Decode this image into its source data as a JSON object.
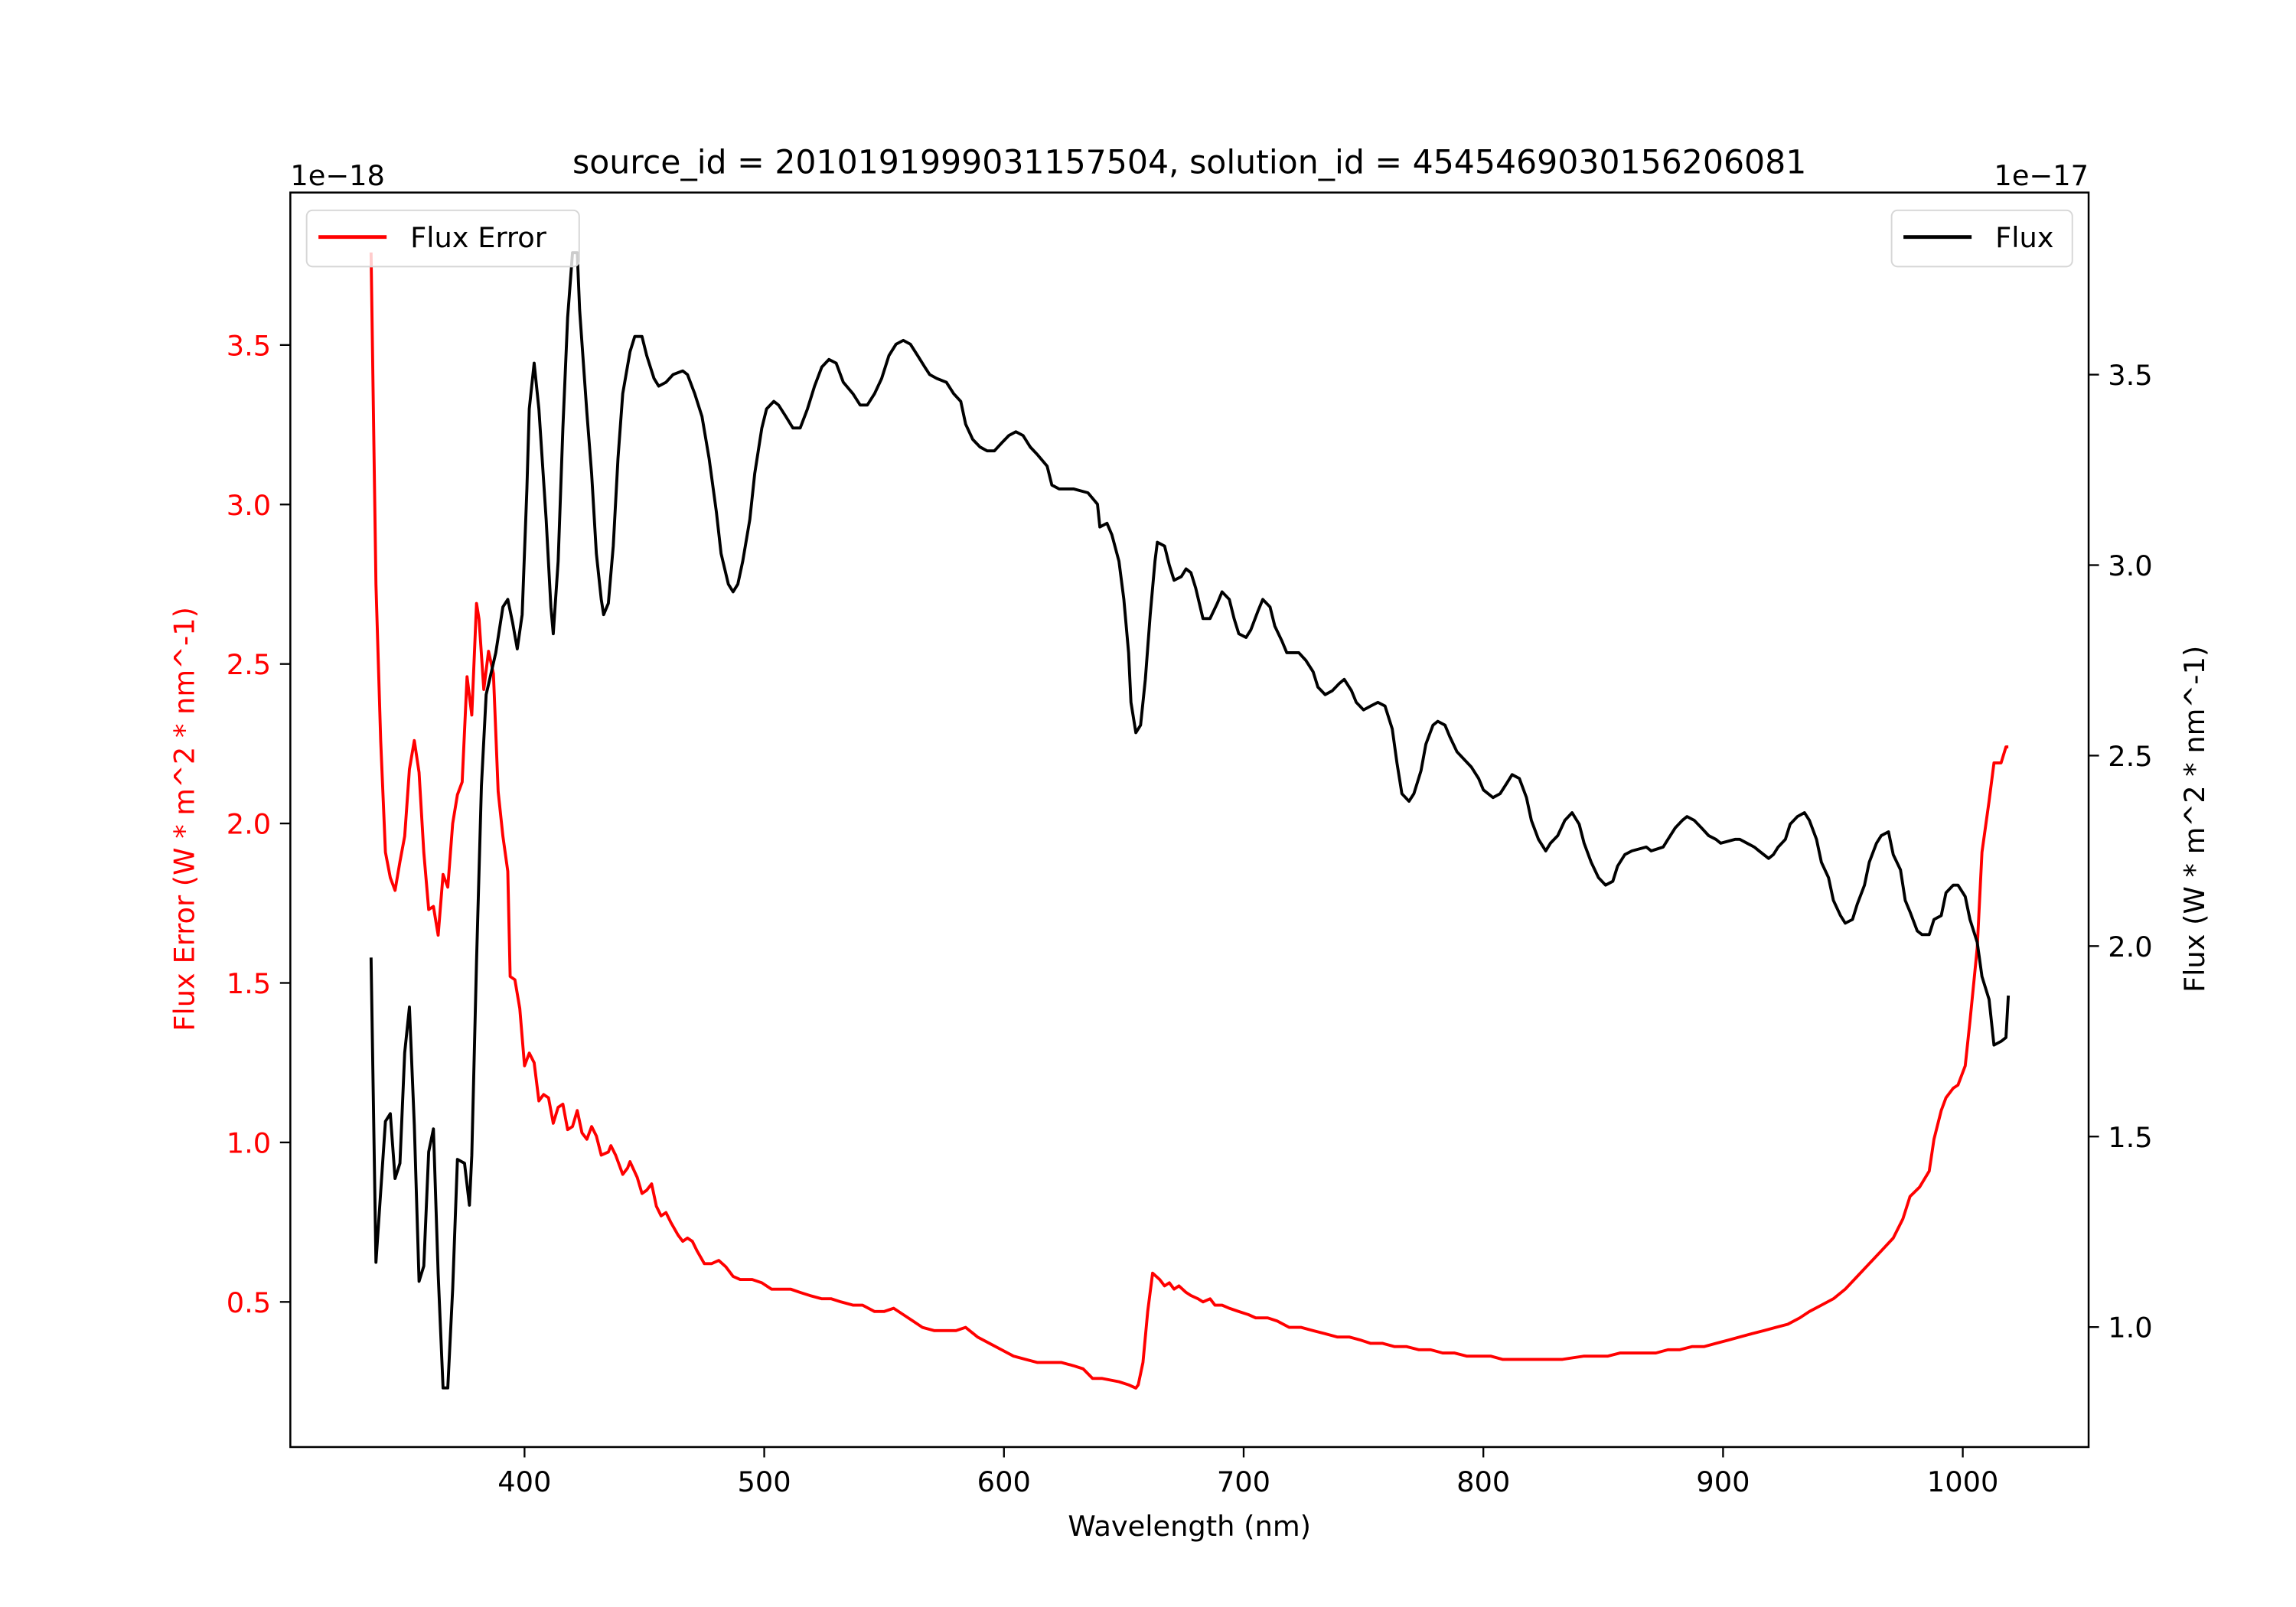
{
  "chart_data": {
    "type": "line",
    "title": "source_id = 2010191999031157504, solution_id = 4545469030156206081",
    "xlabel": "Wavelength (nm)",
    "ylabel_left": "Flux Error (W * m^2 * nm^-1)",
    "ylabel_right": "Flux (W * m^2 * nm^-1)",
    "left_offset_text": "1e−18",
    "right_offset_text": "1e−17",
    "xlim": [
      302.3,
      1052.5
    ],
    "ylim_left": [
      0.045,
      3.978
    ],
    "ylim_right": [
      0.685,
      3.978
    ],
    "x_ticks": [
      "400",
      "500",
      "600",
      "700",
      "800",
      "900",
      "1000"
    ],
    "y_ticks_left": [
      "0.5",
      "1.0",
      "1.5",
      "2.0",
      "2.5",
      "3.0",
      "3.5"
    ],
    "y_ticks_right": [
      "1.0",
      "1.5",
      "2.0",
      "2.5",
      "3.0",
      "3.5"
    ],
    "grid": false,
    "legend_left": {
      "label": "Flux Error",
      "placement": "upper-left"
    },
    "legend_right": {
      "label": "Flux",
      "placement": "upper-right"
    },
    "colors": {
      "flux_error": "#ff0000",
      "flux": "#000000",
      "left_axis_text": "#ff0000"
    },
    "series": [
      {
        "name": "Flux Error",
        "axis": "left",
        "x": [
          336,
          338,
          340,
          342,
          344,
          346,
          348,
          350,
          352,
          354,
          356,
          358,
          360,
          362,
          364,
          366,
          368,
          370,
          372,
          374,
          376,
          378,
          380,
          381,
          383,
          385,
          387,
          389,
          391,
          393,
          394,
          396,
          398,
          400,
          402,
          404,
          406,
          408,
          410,
          412,
          414,
          416,
          418,
          420,
          422,
          424,
          426,
          428,
          430,
          432,
          435,
          436,
          438,
          441,
          443,
          444,
          447,
          449,
          451,
          453,
          455,
          457,
          459,
          461,
          464,
          466,
          468,
          470,
          472,
          475,
          478,
          481,
          484,
          487,
          490,
          495,
          499,
          503,
          507,
          511,
          515,
          519,
          524,
          528,
          532,
          537,
          541,
          546,
          550,
          554,
          558,
          562,
          566,
          571,
          575,
          580,
          584,
          589,
          594,
          599,
          604,
          609,
          614,
          619,
          624,
          629,
          633,
          637,
          641,
          648,
          652,
          655,
          656,
          658,
          660,
          662,
          665,
          667,
          669,
          671,
          673,
          676,
          678,
          681,
          683,
          686,
          688,
          691,
          694,
          698,
          702,
          705,
          710,
          714,
          719,
          724,
          729,
          734,
          739,
          744,
          749,
          753,
          758,
          763,
          768,
          773,
          778,
          783,
          788,
          793,
          798,
          803,
          808,
          818,
          828,
          833,
          842,
          852,
          857,
          867,
          872,
          877,
          882,
          887,
          892,
          897,
          902,
          907,
          912,
          917,
          922,
          927,
          932,
          936,
          941,
          946,
          951,
          956,
          961,
          966,
          971,
          975,
          978,
          982,
          986,
          988,
          991,
          993,
          996,
          998,
          1001,
          1003,
          1006,
          1008,
          1011,
          1013,
          1016,
          1018,
          1019
        ],
        "y": [
          3.79,
          2.75,
          2.26,
          1.91,
          1.83,
          1.79,
          1.88,
          1.96,
          2.17,
          2.26,
          2.16,
          1.91,
          1.73,
          1.74,
          1.65,
          1.84,
          1.8,
          2.0,
          2.09,
          2.13,
          2.46,
          2.34,
          2.69,
          2.64,
          2.42,
          2.54,
          2.47,
          2.1,
          1.96,
          1.85,
          1.52,
          1.51,
          1.42,
          1.24,
          1.28,
          1.25,
          1.13,
          1.15,
          1.14,
          1.06,
          1.11,
          1.12,
          1.04,
          1.05,
          1.1,
          1.03,
          1.01,
          1.05,
          1.02,
          0.96,
          0.97,
          0.99,
          0.96,
          0.9,
          0.92,
          0.94,
          0.89,
          0.84,
          0.85,
          0.87,
          0.8,
          0.77,
          0.78,
          0.75,
          0.71,
          0.69,
          0.7,
          0.69,
          0.66,
          0.62,
          0.62,
          0.63,
          0.61,
          0.58,
          0.57,
          0.57,
          0.56,
          0.54,
          0.54,
          0.54,
          0.53,
          0.52,
          0.51,
          0.51,
          0.5,
          0.49,
          0.49,
          0.47,
          0.47,
          0.48,
          0.46,
          0.44,
          0.42,
          0.41,
          0.41,
          0.41,
          0.42,
          0.39,
          0.37,
          0.35,
          0.33,
          0.32,
          0.31,
          0.31,
          0.31,
          0.3,
          0.29,
          0.26,
          0.26,
          0.25,
          0.24,
          0.23,
          0.24,
          0.31,
          0.47,
          0.59,
          0.57,
          0.55,
          0.56,
          0.54,
          0.55,
          0.53,
          0.52,
          0.51,
          0.5,
          0.51,
          0.49,
          0.49,
          0.48,
          0.47,
          0.46,
          0.45,
          0.45,
          0.44,
          0.42,
          0.42,
          0.41,
          0.4,
          0.39,
          0.39,
          0.38,
          0.37,
          0.37,
          0.36,
          0.36,
          0.35,
          0.35,
          0.34,
          0.34,
          0.33,
          0.33,
          0.33,
          0.32,
          0.32,
          0.32,
          0.32,
          0.33,
          0.33,
          0.34,
          0.34,
          0.34,
          0.35,
          0.35,
          0.36,
          0.36,
          0.37,
          0.38,
          0.39,
          0.4,
          0.41,
          0.42,
          0.43,
          0.45,
          0.47,
          0.49,
          0.51,
          0.54,
          0.58,
          0.62,
          0.66,
          0.7,
          0.76,
          0.83,
          0.86,
          0.91,
          1.01,
          1.1,
          1.14,
          1.17,
          1.18,
          1.24,
          1.38,
          1.61,
          1.91,
          2.07,
          2.19,
          2.19,
          2.24,
          2.24
        ]
      },
      {
        "name": "Flux",
        "axis": "right",
        "x": [
          336,
          338,
          342,
          344,
          346,
          348,
          350,
          352,
          354,
          356,
          358,
          360,
          362,
          364,
          366,
          368,
          370,
          372,
          375,
          377,
          378,
          380,
          382,
          384,
          388,
          391,
          393,
          395,
          397,
          399,
          401,
          402,
          404,
          406,
          409,
          411,
          412,
          414,
          416,
          418,
          420,
          422,
          423,
          426,
          428,
          430,
          432,
          433,
          435,
          437,
          439,
          441,
          444,
          446,
          449,
          451,
          454,
          456,
          459,
          462,
          466,
          468,
          471,
          474,
          477,
          480,
          482,
          485,
          487,
          489,
          491,
          494,
          496,
          499,
          501,
          504,
          506,
          509,
          512,
          515,
          518,
          521,
          524,
          527,
          530,
          533,
          537,
          540,
          543,
          546,
          549,
          552,
          555,
          558,
          561,
          564,
          567,
          569,
          572,
          576,
          579,
          582,
          584,
          587,
          590,
          593,
          596,
          599,
          602,
          605,
          608,
          611,
          614,
          618,
          620,
          623,
          629,
          635,
          639,
          640,
          643,
          645,
          648,
          650,
          652,
          653,
          655,
          657,
          659,
          661,
          663,
          664,
          667,
          669,
          671,
          674,
          676,
          678,
          680,
          683,
          686,
          689,
          691,
          694,
          696,
          698,
          701,
          703,
          706,
          708,
          711,
          713,
          716,
          718,
          723,
          726,
          729,
          731,
          734,
          737,
          740,
          742,
          745,
          747,
          750,
          753,
          756,
          759,
          762,
          764,
          766,
          769,
          771,
          774,
          776,
          779,
          781,
          784,
          786,
          789,
          792,
          795,
          798,
          800,
          804,
          807,
          810,
          812,
          815,
          818,
          820,
          823,
          826,
          828,
          831,
          834,
          837,
          840,
          842,
          845,
          848,
          851,
          854,
          856,
          859,
          862,
          868,
          870,
          875,
          877,
          880,
          883,
          885,
          888,
          891,
          894,
          897,
          899,
          905,
          907,
          910,
          913,
          915,
          919,
          921,
          923,
          926,
          928,
          931,
          934,
          936,
          939,
          941,
          944,
          946,
          949,
          951,
          954,
          956,
          959,
          961,
          964,
          966,
          969,
          971,
          974,
          976,
          978,
          981,
          983,
          986,
          988,
          991,
          993,
          996,
          998,
          1001,
          1003,
          1006,
          1008,
          1011,
          1013,
          1016,
          1018,
          1019
        ],
        "y": [
          1.97,
          1.17,
          1.54,
          1.56,
          1.39,
          1.43,
          1.72,
          1.84,
          1.53,
          1.12,
          1.16,
          1.46,
          1.52,
          1.14,
          0.84,
          0.84,
          1.1,
          1.44,
          1.43,
          1.32,
          1.45,
          1.96,
          2.42,
          2.66,
          2.77,
          2.89,
          2.91,
          2.85,
          2.78,
          2.87,
          3.2,
          3.41,
          3.53,
          3.41,
          3.12,
          2.89,
          2.82,
          3.01,
          3.36,
          3.65,
          3.82,
          3.82,
          3.67,
          3.4,
          3.24,
          3.03,
          2.91,
          2.87,
          2.9,
          3.05,
          3.28,
          3.45,
          3.56,
          3.6,
          3.6,
          3.55,
          3.49,
          3.47,
          3.48,
          3.5,
          3.51,
          3.5,
          3.45,
          3.39,
          3.28,
          3.14,
          3.03,
          2.95,
          2.93,
          2.95,
          3.01,
          3.12,
          3.24,
          3.36,
          3.41,
          3.43,
          3.42,
          3.39,
          3.36,
          3.36,
          3.41,
          3.47,
          3.52,
          3.54,
          3.53,
          3.48,
          3.45,
          3.42,
          3.42,
          3.45,
          3.49,
          3.55,
          3.58,
          3.59,
          3.58,
          3.55,
          3.52,
          3.5,
          3.49,
          3.48,
          3.45,
          3.43,
          3.37,
          3.33,
          3.31,
          3.3,
          3.3,
          3.32,
          3.34,
          3.35,
          3.34,
          3.31,
          3.29,
          3.26,
          3.21,
          3.2,
          3.2,
          3.19,
          3.16,
          3.1,
          3.11,
          3.08,
          3.01,
          2.91,
          2.77,
          2.64,
          2.56,
          2.58,
          2.7,
          2.87,
          3.01,
          3.06,
          3.05,
          3.0,
          2.96,
          2.97,
          2.99,
          2.98,
          2.94,
          2.86,
          2.86,
          2.9,
          2.93,
          2.91,
          2.86,
          2.82,
          2.81,
          2.83,
          2.88,
          2.91,
          2.89,
          2.84,
          2.8,
          2.77,
          2.77,
          2.75,
          2.72,
          2.68,
          2.66,
          2.67,
          2.69,
          2.7,
          2.67,
          2.64,
          2.62,
          2.63,
          2.64,
          2.63,
          2.57,
          2.48,
          2.4,
          2.38,
          2.4,
          2.46,
          2.53,
          2.58,
          2.59,
          2.58,
          2.55,
          2.51,
          2.49,
          2.47,
          2.44,
          2.41,
          2.39,
          2.4,
          2.43,
          2.45,
          2.44,
          2.39,
          2.33,
          2.28,
          2.25,
          2.27,
          2.29,
          2.33,
          2.35,
          2.32,
          2.27,
          2.22,
          2.18,
          2.16,
          2.17,
          2.21,
          2.24,
          2.25,
          2.26,
          2.25,
          2.26,
          2.28,
          2.31,
          2.33,
          2.34,
          2.33,
          2.31,
          2.29,
          2.28,
          2.27,
          2.28,
          2.28,
          2.27,
          2.26,
          2.25,
          2.23,
          2.24,
          2.26,
          2.28,
          2.32,
          2.34,
          2.35,
          2.33,
          2.28,
          2.22,
          2.18,
          2.12,
          2.08,
          2.06,
          2.07,
          2.11,
          2.16,
          2.22,
          2.27,
          2.29,
          2.3,
          2.24,
          2.2,
          2.12,
          2.09,
          2.04,
          2.03,
          2.03,
          2.07,
          2.08,
          2.14,
          2.16,
          2.16,
          2.13,
          2.07,
          2.01,
          1.92,
          1.86,
          1.74,
          1.75,
          1.76,
          1.87
        ]
      }
    ]
  }
}
